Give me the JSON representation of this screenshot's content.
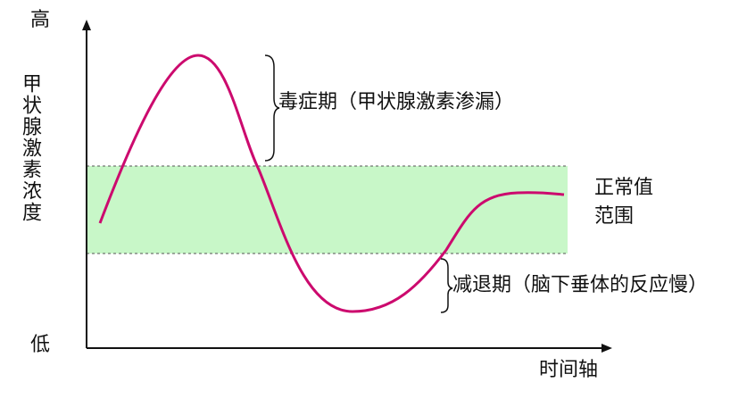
{
  "axis": {
    "high": "高",
    "low": "低",
    "y_label": "甲状腺激素浓度",
    "x_label": "时间轴"
  },
  "annotations": {
    "toxic_phase": "毒症期（甲状腺激素渗漏）",
    "normal_range": [
      "正常值",
      "范围"
    ],
    "hypo_phase": "减退期（脑下垂体的反应慢）"
  }
}
